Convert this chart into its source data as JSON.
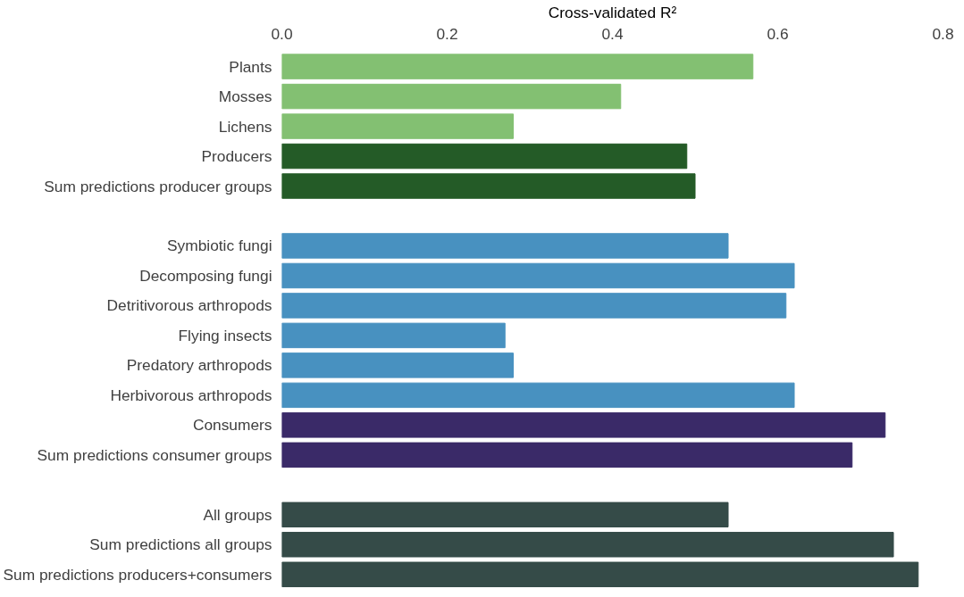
{
  "chart_data": {
    "type": "bar",
    "orientation": "horizontal",
    "xlabel": "Cross-validated R²",
    "categories": [
      "Plants",
      "Mosses",
      "Lichens",
      "Producers",
      "Sum predictions producer groups",
      null,
      "Symbiotic fungi",
      "Decomposing fungi",
      "Detritivorous arthropods",
      "Flying insects",
      "Predatory arthropods",
      "Herbivorous arthropods",
      "Consumers",
      "Sum predictions consumer groups",
      null,
      "All groups",
      "Sum predictions all groups",
      "Sum predictions producers+consumers"
    ],
    "values": [
      0.57,
      0.41,
      0.28,
      0.49,
      0.5,
      null,
      0.54,
      0.62,
      0.61,
      0.27,
      0.28,
      0.62,
      0.73,
      0.69,
      null,
      0.54,
      0.74,
      0.77
    ],
    "colors": [
      "#83c072",
      "#83c072",
      "#83c072",
      "#245b27",
      "#245b27",
      "#ffffff",
      "#4891c0",
      "#4891c0",
      "#4891c0",
      "#4891c0",
      "#4891c0",
      "#4891c0",
      "#3a2a68",
      "#3a2a68",
      "#ffffff",
      "#354b48",
      "#354b48",
      "#354b48"
    ],
    "xlim": [
      0,
      0.8
    ],
    "xticks": [
      {
        "value": 0,
        "label": "0.0"
      },
      0.2,
      0.4,
      0.6,
      0.8
    ],
    "grid": false
  }
}
